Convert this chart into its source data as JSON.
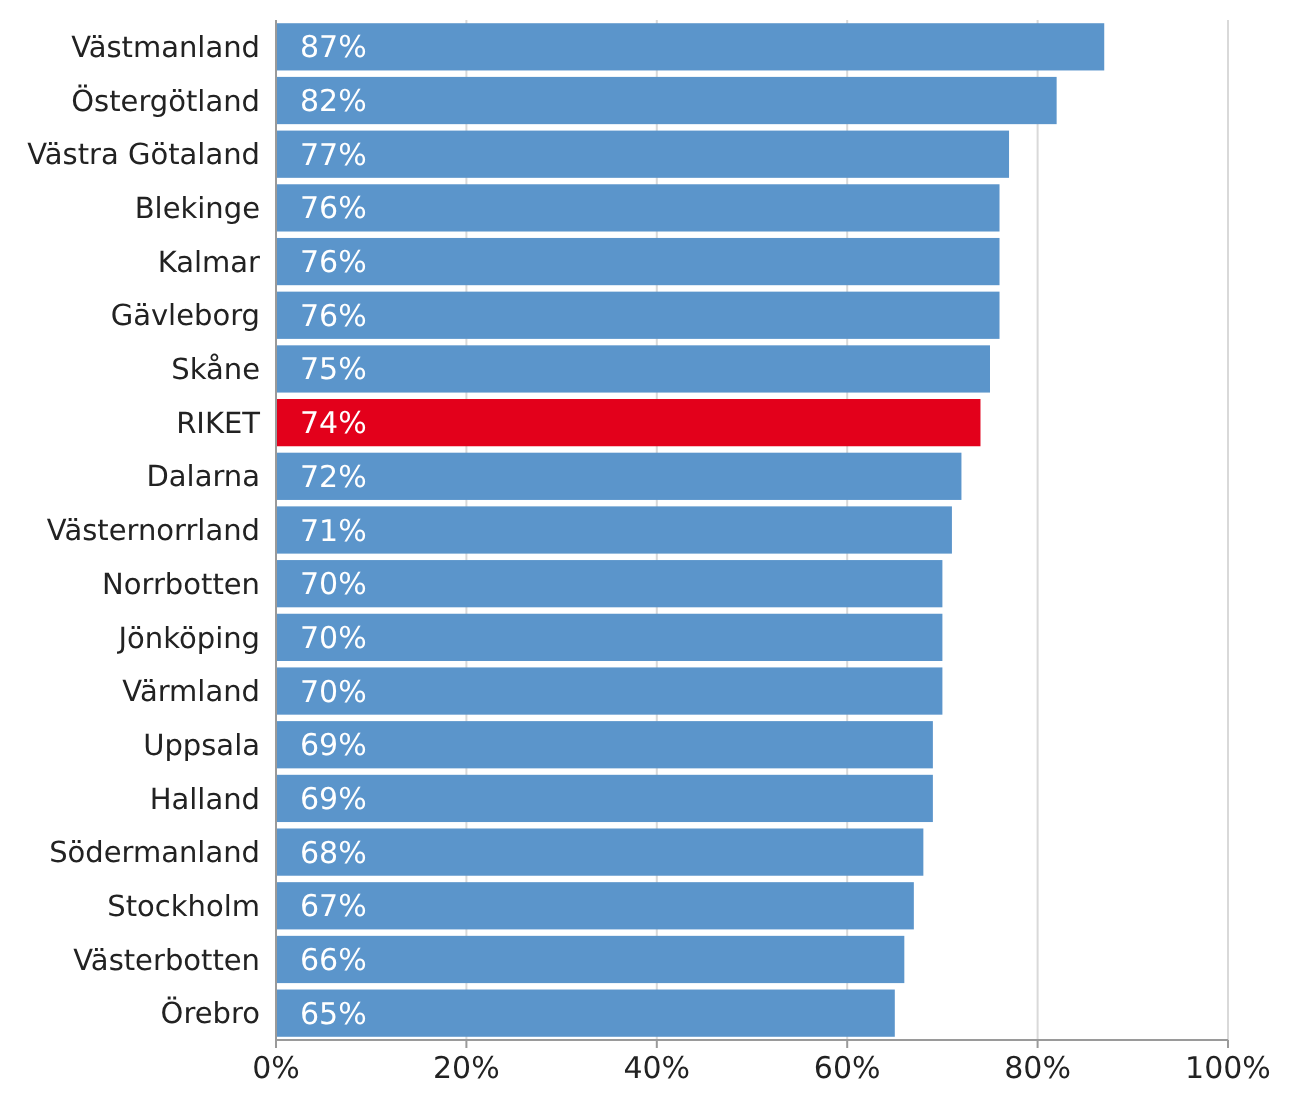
{
  "chart_data": {
    "type": "bar",
    "orientation": "horizontal",
    "categories": [
      "Västmanland",
      "Östergötland",
      "Västra Götaland",
      "Blekinge",
      "Kalmar",
      "Gävleborg",
      "Skåne",
      "RIKET",
      "Dalarna",
      "Västernorrland",
      "Norrbotten",
      "Jönköping",
      "Värmland",
      "Uppsala",
      "Halland",
      "Södermanland",
      "Stockholm",
      "Västerbotten",
      "Örebro"
    ],
    "values": [
      87,
      82,
      77,
      76,
      76,
      76,
      75,
      74,
      72,
      71,
      70,
      70,
      70,
      69,
      69,
      68,
      67,
      66,
      65
    ],
    "colors": [
      "#5b95cb",
      "#5b95cb",
      "#5b95cb",
      "#5b95cb",
      "#5b95cb",
      "#5b95cb",
      "#5b95cb",
      "#e3001b",
      "#5b95cb",
      "#5b95cb",
      "#5b95cb",
      "#5b95cb",
      "#5b95cb",
      "#5b95cb",
      "#5b95cb",
      "#5b95cb",
      "#5b95cb",
      "#5b95cb",
      "#5b95cb"
    ],
    "value_labels": [
      "87%",
      "82%",
      "77%",
      "76%",
      "76%",
      "76%",
      "75%",
      "74%",
      "72%",
      "71%",
      "70%",
      "70%",
      "70%",
      "69%",
      "69%",
      "68%",
      "67%",
      "66%",
      "65%"
    ],
    "xlim": [
      0,
      100
    ],
    "xticks": [
      {
        "value": 0,
        "label": "0%"
      },
      {
        "value": 20,
        "label": "20%"
      },
      {
        "value": 40,
        "label": "40%"
      },
      {
        "value": 60,
        "label": "60%"
      },
      {
        "value": 80,
        "label": "80%"
      },
      {
        "value": 100,
        "label": "100%"
      }
    ],
    "grid": "x"
  }
}
